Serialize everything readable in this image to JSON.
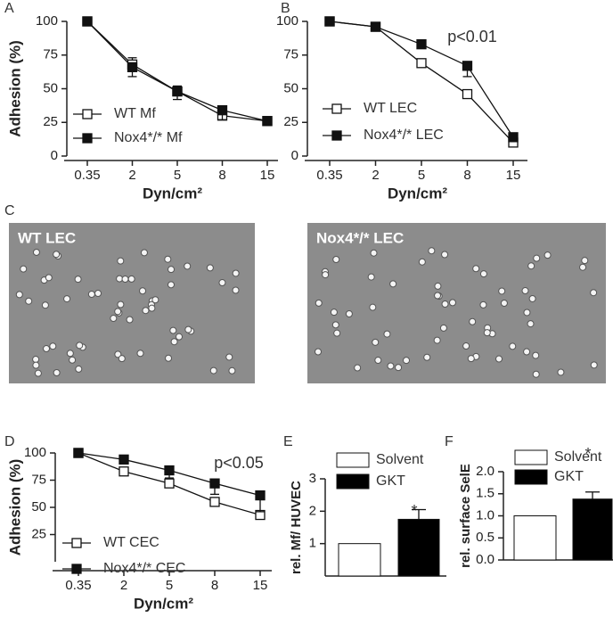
{
  "chart_data": [
    {
      "type": "line",
      "panel": "A",
      "ylabel": "Adhesion (%)",
      "xlabel": "Dyn/cm²",
      "categories": [
        "0.35",
        "2",
        "5",
        "8",
        "15"
      ],
      "ylim": [
        0,
        100
      ],
      "yticks": [
        0,
        25,
        50,
        75,
        100
      ],
      "series": [
        {
          "name": "WT Mf",
          "color": "#111111",
          "marker": "open",
          "values": [
            100,
            68,
            48,
            30,
            26
          ],
          "errors": [
            0,
            5,
            4,
            4,
            2
          ]
        },
        {
          "name": "Nox4*/* Mf",
          "color": "#111111",
          "marker": "filled",
          "values": [
            100,
            66,
            48,
            34,
            26
          ],
          "errors": [
            0,
            7,
            6,
            7,
            2
          ]
        }
      ]
    },
    {
      "type": "line",
      "panel": "B",
      "xlabel": "Dyn/cm²",
      "annotation": "p<0.01",
      "categories": [
        "0.35",
        "2",
        "5",
        "8",
        "15"
      ],
      "ylim": [
        0,
        100
      ],
      "yticks": [
        0,
        25,
        50,
        75,
        100
      ],
      "series": [
        {
          "name": "WT LEC",
          "color": "#111111",
          "marker": "open",
          "values": [
            100,
            96,
            69,
            46,
            10
          ],
          "errors": [
            0,
            1,
            2,
            2,
            2
          ]
        },
        {
          "name": "Nox4*/* LEC",
          "color": "#111111",
          "marker": "filled",
          "values": [
            100,
            96,
            83,
            67,
            14
          ],
          "errors": [
            0,
            1,
            3,
            8,
            2
          ]
        }
      ]
    },
    {
      "type": "image",
      "panel": "C",
      "labels": [
        "WT LEC",
        "Nox4*/* LEC"
      ]
    },
    {
      "type": "line",
      "panel": "D",
      "ylabel": "Adhesion (%)",
      "xlabel": "Dyn/cm²",
      "annotation": "p<0.05",
      "categories": [
        "0.35",
        "2",
        "5",
        "8",
        "15"
      ],
      "ylim": [
        0,
        100
      ],
      "yticks": [
        25,
        50,
        75,
        100
      ],
      "series": [
        {
          "name": "WT CEC",
          "color": "#111111",
          "marker": "open",
          "values": [
            100,
            83,
            72,
            55,
            43
          ],
          "errors": [
            0,
            2,
            2,
            2,
            3
          ]
        },
        {
          "name": "Nox4*/* CEC",
          "color": "#111111",
          "marker": "filled",
          "values": [
            100,
            94,
            84,
            72,
            61
          ],
          "errors": [
            0,
            4,
            7,
            10,
            15
          ]
        }
      ]
    },
    {
      "type": "bar",
      "panel": "E",
      "ylabel": "rel. Mf/ HUVEC",
      "annotation": "*",
      "ylim": [
        0,
        3
      ],
      "yticks": [
        1,
        2,
        3
      ],
      "series": [
        {
          "name": "Solvent",
          "color": "#ffffff",
          "values": [
            1
          ]
        },
        {
          "name": "GKT",
          "color": "#000000",
          "values": [
            1.75
          ],
          "errors": [
            0.3
          ]
        }
      ]
    },
    {
      "type": "bar",
      "panel": "F",
      "ylabel": "rel. surface SelE",
      "annotation": "*",
      "ylim": [
        0,
        2
      ],
      "yticks": [
        {
          "value": 0,
          "label": "0.0"
        },
        {
          "value": 0.5,
          "label": "0.5"
        },
        {
          "value": 1,
          "label": "1.0"
        },
        {
          "value": 1.5,
          "label": "1.5"
        },
        {
          "value": 2,
          "label": "2.0"
        }
      ],
      "series": [
        {
          "name": "Solvent",
          "color": "#ffffff",
          "values": [
            1
          ]
        },
        {
          "name": "GKT",
          "color": "#000000",
          "values": [
            1.38
          ],
          "errors": [
            0.16
          ]
        }
      ]
    }
  ]
}
